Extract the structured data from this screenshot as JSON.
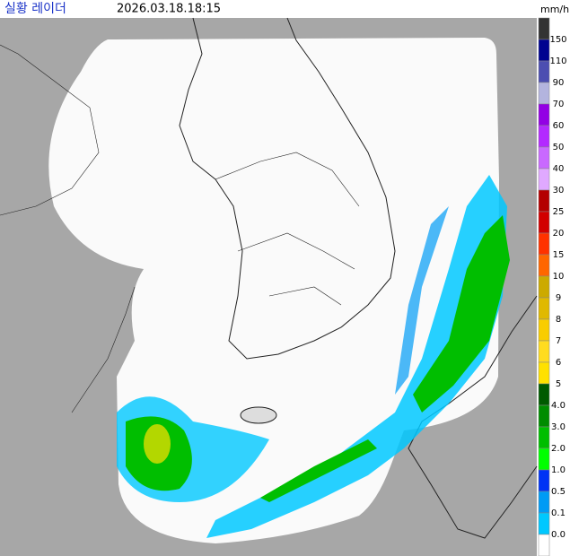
{
  "header": {
    "title": "실황 레이더",
    "timestamp": "2026.03.18.18:15",
    "unit": "mm/h"
  },
  "legend": {
    "labels": [
      150,
      110,
      90,
      70,
      60,
      50,
      40,
      30,
      25,
      20,
      15,
      10,
      9,
      8,
      7,
      6,
      5,
      {
        "value": 4,
        "label": "4.0"
      },
      {
        "value": 3,
        "label": "3.0"
      },
      {
        "value": 2,
        "label": "2.0"
      },
      {
        "value": 1,
        "label": "1.0"
      },
      0.5,
      0.1,
      {
        "value": 0,
        "label": "0.0"
      }
    ],
    "colors": [
      "#333333",
      "#000390",
      "#4c4eb1",
      "#b3b4de",
      "#9300e4",
      "#b329ff",
      "#c969ff",
      "#e0a9ff",
      "#b40000",
      "#d20000",
      "#ff3200",
      "#ff6600",
      "#ccaa00",
      "#e0b900",
      "#f9cd00",
      "#ffdc1f",
      "#ffe100",
      "#005a00",
      "#008c00",
      "#00be00",
      "#00ff00",
      "#0033f5",
      "#009bf5",
      "#00c8ff",
      "#ffffff"
    ]
  }
}
